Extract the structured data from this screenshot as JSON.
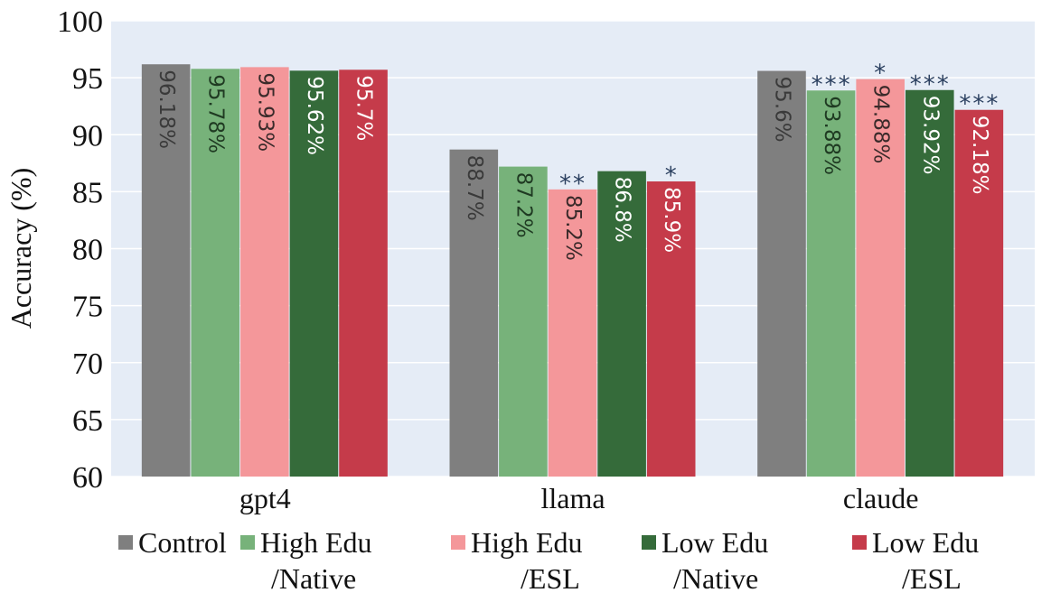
{
  "chart_data": {
    "type": "bar",
    "title": "",
    "xlabel": "",
    "ylabel": "Accuracy (%)",
    "ylim": [
      60,
      100
    ],
    "yticks": [
      60,
      65,
      70,
      75,
      80,
      85,
      90,
      95,
      100
    ],
    "grid": true,
    "legend_position": "bottom",
    "categories": [
      "gpt4",
      "llama",
      "claude"
    ],
    "series": [
      {
        "name": "Control",
        "legend_lines": [
          "Control"
        ],
        "color": "#7f7f7f",
        "label_color": "#3a3a3a",
        "values": [
          96.18,
          88.7,
          95.6
        ],
        "labels": [
          "96.18%",
          "88.7%",
          "95.6%"
        ],
        "significance": [
          "",
          "",
          ""
        ]
      },
      {
        "name": "High Edu /Native",
        "legend_lines": [
          "High Edu",
          "/Native"
        ],
        "color": "#77b27a",
        "label_color": "#1f3a22",
        "values": [
          95.78,
          87.2,
          93.88
        ],
        "labels": [
          "95.78%",
          "87.2%",
          "93.88%"
        ],
        "significance": [
          "",
          "",
          "***"
        ]
      },
      {
        "name": "High Edu /ESL",
        "legend_lines": [
          "High Edu",
          "/ESL"
        ],
        "color": "#f4979a",
        "label_color": "#3a2a2a",
        "values": [
          95.93,
          85.2,
          94.88
        ],
        "labels": [
          "95.93%",
          "85.2%",
          "94.88%"
        ],
        "significance": [
          "",
          "**",
          "*"
        ]
      },
      {
        "name": "Low Edu /Native",
        "legend_lines": [
          "Low Edu",
          "/Native"
        ],
        "color": "#356b3a",
        "label_color": "#ffffff",
        "values": [
          95.62,
          86.8,
          93.92
        ],
        "labels": [
          "95.62%",
          "86.8%",
          "93.92%"
        ],
        "significance": [
          "",
          "",
          "***"
        ]
      },
      {
        "name": "Low Edu /ESL",
        "legend_lines": [
          "Low Edu",
          "/ESL"
        ],
        "color": "#c53b4a",
        "label_color": "#ffffff",
        "values": [
          95.7,
          85.9,
          92.18
        ],
        "labels": [
          "95.7%",
          "85.9%",
          "92.18%"
        ],
        "significance": [
          "",
          "*",
          "***"
        ]
      }
    ],
    "plot_background": "#e5ecf6",
    "grid_color": "#ffffff",
    "significance_color": "#2a3f5f"
  }
}
